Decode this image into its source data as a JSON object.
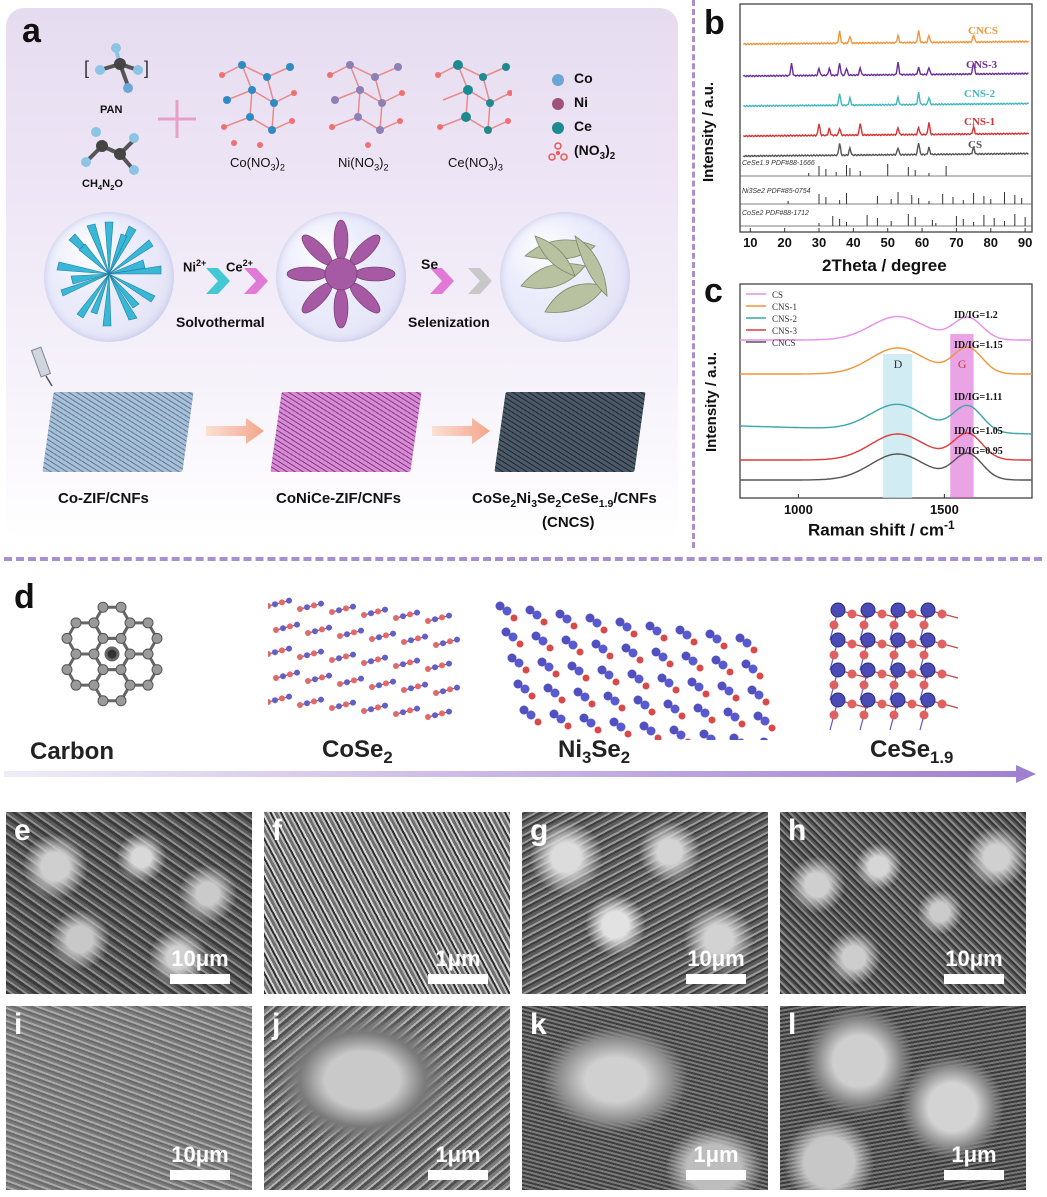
{
  "panel_letters": {
    "a": "a",
    "b": "b",
    "c": "c",
    "d": "d",
    "e": "e",
    "f": "f",
    "g": "g",
    "h": "h",
    "i": "i",
    "j": "j",
    "k": "k",
    "l": "l"
  },
  "panel_a": {
    "pan_label": "PAN",
    "ch4n2o_label": "CH4N2O",
    "co_no3": "Co(NO3)2",
    "ni_no3": "Ni(NO3)2",
    "ce_no3": "Ce(NO3)3",
    "legend": [
      "Co",
      "Ni",
      "Ce",
      "(NO3)2"
    ],
    "step1_ions": [
      "Ni2+",
      "Ce2+"
    ],
    "step1_label": "Solvothermal",
    "step2_ion": "Se",
    "step2_label": "Selenization",
    "stage1": "Co-ZIF/CNFs",
    "stage2": "CoNiCe-ZIF/CNFs",
    "stage3": "CoSe2Ni3Se2CeSe1.9/CNFs",
    "stage3_abbr": "(CNCS)",
    "colors": {
      "co": "#6aa6d6",
      "ni": "#a0527a",
      "ce": "#1d8a8f",
      "arrow_cyan": "#42c9d4",
      "arrow_pink": "#e07ad6",
      "arrow_gray": "#c8c8c8",
      "arrow_salmon": "#f4a58a"
    }
  },
  "chart_data": [
    {
      "type": "line",
      "panel": "b",
      "ylabel": "Intensity / a.u.",
      "xlabel": "2Theta / degree",
      "xlim": [
        7,
        92
      ],
      "xticks": [
        10,
        20,
        30,
        40,
        50,
        60,
        70,
        80,
        90
      ],
      "series": [
        {
          "name": "CNCS",
          "color": "#f0953a",
          "peaks": [
            36,
            39,
            53,
            59,
            62,
            75
          ]
        },
        {
          "name": "CNS-3",
          "color": "#6a2c9a",
          "peaks": [
            22,
            30,
            33,
            36,
            38,
            42,
            53,
            59,
            62,
            75
          ]
        },
        {
          "name": "CNS-2",
          "color": "#3fb7c0",
          "peaks": [
            36,
            39,
            53,
            59,
            62
          ]
        },
        {
          "name": "CNS-1",
          "color": "#d63232",
          "peaks": [
            30,
            33,
            36,
            42,
            53,
            59,
            62,
            75
          ]
        },
        {
          "name": "CS",
          "color": "#555555",
          "peaks": [
            36,
            39,
            53,
            59,
            62,
            75
          ]
        }
      ],
      "references": [
        {
          "name": "CeSe1.9 PDF#88-1666",
          "sticks": [
            27,
            30,
            32,
            35,
            38,
            39,
            42,
            50,
            56,
            58,
            62,
            67
          ]
        },
        {
          "name": "Ni3Se2 PDF#85-0754",
          "sticks": [
            21,
            30,
            32,
            36,
            38,
            47,
            51,
            53,
            57,
            59,
            62,
            66,
            69,
            72,
            75,
            78,
            80,
            84,
            87,
            89
          ]
        },
        {
          "name": "CoSe2 PDF#88-1712",
          "sticks": [
            30,
            34,
            36,
            38,
            44,
            47,
            51,
            56,
            58,
            63,
            64,
            70,
            72,
            75,
            78,
            81,
            84,
            87,
            90
          ]
        }
      ]
    },
    {
      "type": "line",
      "panel": "c",
      "ylabel": "Intensity / a.u.",
      "xlabel": "Raman shift / cm-1",
      "xlim": [
        800,
        1800
      ],
      "xticks": [
        1000,
        1500
      ],
      "bands": {
        "D": 1340,
        "G": 1580
      },
      "series": [
        {
          "name": "CS",
          "color": "#e98ee8",
          "ratio": "ID/IG=1.2"
        },
        {
          "name": "CNS-1",
          "color": "#f0953a",
          "ratio": "ID/IG=1.15"
        },
        {
          "name": "CNS-2",
          "color": "#3ba6a8",
          "ratio": "ID/IG=1.11"
        },
        {
          "name": "CNS-3",
          "color": "#dd3b3b",
          "ratio": "ID/IG=1.05"
        },
        {
          "name": "CNCS",
          "color": "#555555",
          "ratio": "ID/IG=0.95"
        }
      ]
    }
  ],
  "panel_d": {
    "structures": [
      "Carbon",
      "CoSe2",
      "Ni3Se2",
      "CeSe1.9"
    ]
  },
  "sem": {
    "e": "10μm",
    "f": "1μm",
    "g": "10μm",
    "h": "10μm",
    "i": "10μm",
    "j": "1μm",
    "k": "1μm",
    "l": "1μm"
  }
}
